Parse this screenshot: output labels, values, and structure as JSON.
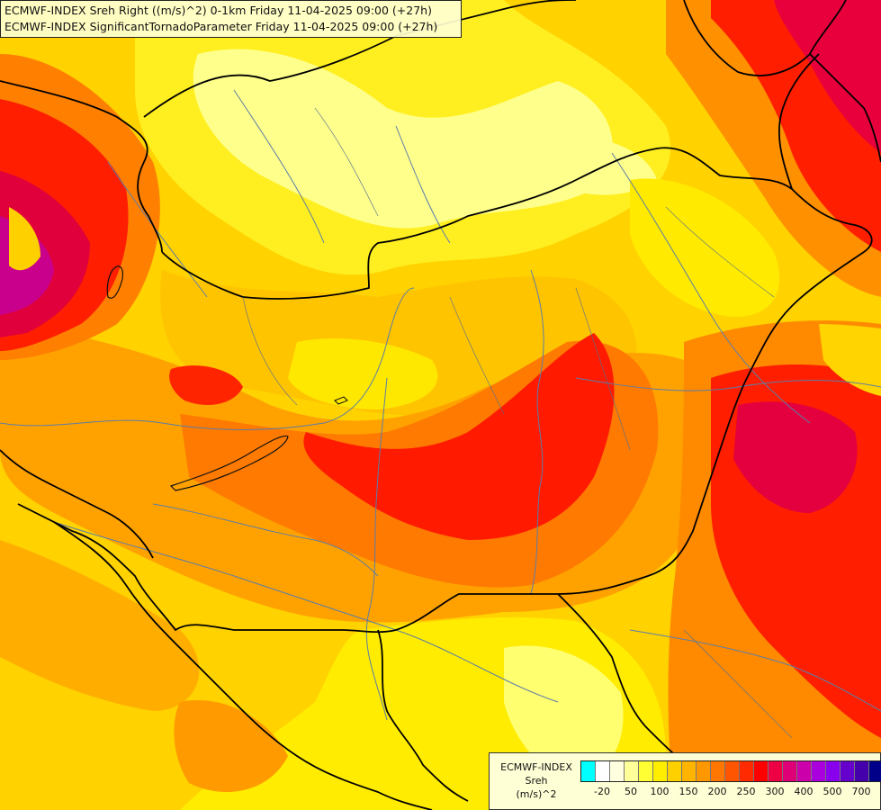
{
  "title": {
    "line1": "ECMWF-INDEX Sreh Right ((m/s)^2) 0-1km Friday 11-04-2025 09:00 (+27h)",
    "line2": "ECMWF-INDEX SignificantTornadoParameter Friday 11-04-2025 09:00 (+27h)"
  },
  "legend": {
    "name_line1": "ECMWF-INDEX",
    "name_line2": "Sreh",
    "unit": "(m/s)^2",
    "swatch_colors": [
      "#00ffff",
      "#ffffff",
      "#ffffe0",
      "#ffff99",
      "#ffff33",
      "#ffee00",
      "#ffd000",
      "#ffb400",
      "#ff9800",
      "#ff7700",
      "#ff5500",
      "#ff2a00",
      "#ff0000",
      "#ee0044",
      "#dd0077",
      "#cc00aa",
      "#aa00dd",
      "#8800ee",
      "#6600cc",
      "#4400aa",
      "#000088"
    ],
    "tick_labels": [
      "-20",
      "50",
      "100",
      "150",
      "200",
      "250",
      "300",
      "400",
      "500",
      "700"
    ]
  },
  "colors": {
    "yellow_light": "#ffff99",
    "yellow": "#ffe600",
    "gold": "#ffc000",
    "orange": "#ffa000",
    "dark_orange": "#ff7000",
    "red": "#ff1e00",
    "crimson": "#e8003c",
    "magenta": "#c8008c",
    "border": "#000000",
    "river": "#5b7da8"
  }
}
